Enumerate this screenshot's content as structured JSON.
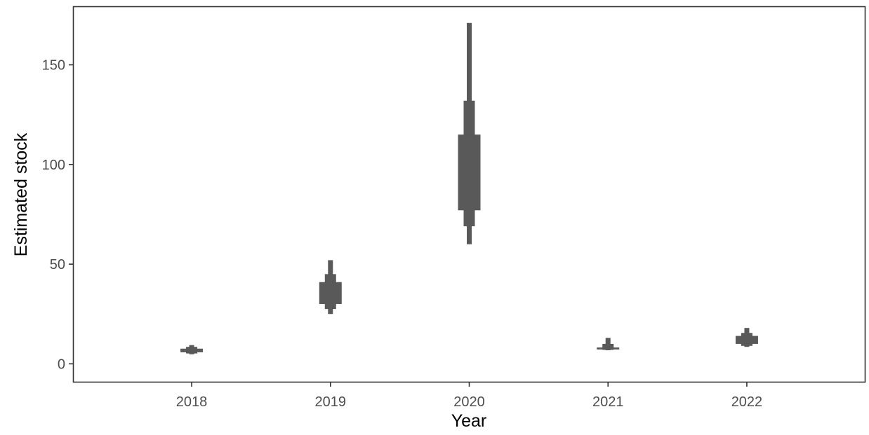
{
  "chart_data": {
    "type": "interval",
    "title": "",
    "xlabel": "Year",
    "ylabel": "Estimated stock",
    "categories": [
      "2018",
      "2019",
      "2020",
      "2021",
      "2022"
    ],
    "y_ticks": [
      0,
      50,
      100,
      150
    ],
    "ylim": [
      -9,
      179
    ],
    "grid": false,
    "legend": "none",
    "series_color": "#595959",
    "intervals": [
      {
        "year": "2018",
        "wide": [
          5.8,
          7.6
        ],
        "mid": [
          5.2,
          8.5
        ],
        "narrow": [
          4.8,
          9.4
        ]
      },
      {
        "year": "2019",
        "wide": [
          30,
          41
        ],
        "mid": [
          27.5,
          45
        ],
        "narrow": [
          25,
          52
        ]
      },
      {
        "year": "2020",
        "wide": [
          77,
          115
        ],
        "mid": [
          69,
          132
        ],
        "narrow": [
          60,
          171
        ]
      },
      {
        "year": "2021",
        "wide": [
          7.2,
          8.2
        ],
        "mid": [
          7.0,
          10
        ],
        "narrow": [
          6.8,
          13
        ]
      },
      {
        "year": "2022",
        "wide": [
          10,
          14
        ],
        "mid": [
          9,
          15.5
        ],
        "narrow": [
          8.5,
          18
        ]
      }
    ]
  }
}
